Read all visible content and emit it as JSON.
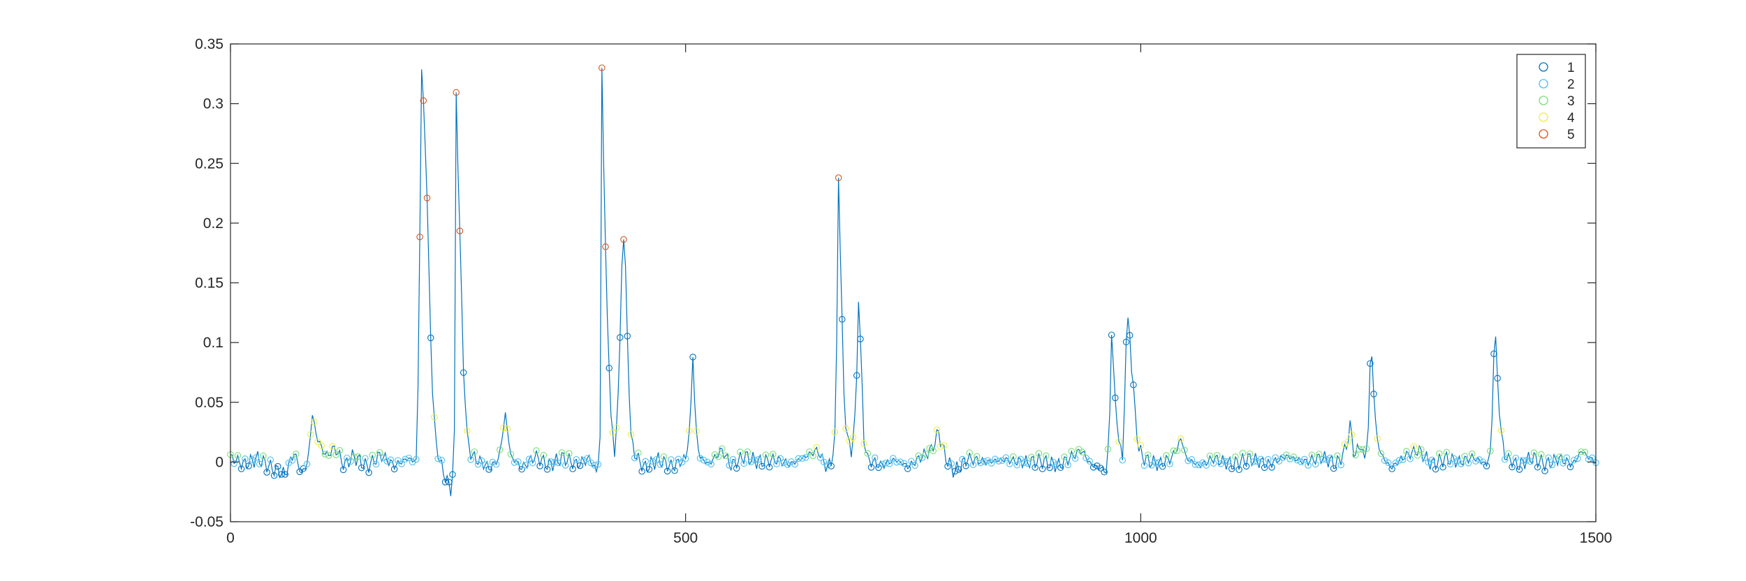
{
  "chart_data": {
    "type": "scatter",
    "xlim": [
      0,
      1500
    ],
    "ylim": [
      -0.05,
      0.35
    ],
    "x_ticks": [
      "0",
      "500",
      "1000",
      "1500"
    ],
    "y_ticks": [
      "-0.05",
      "0",
      "0.05",
      "0.1",
      "0.15",
      "0.2",
      "0.25",
      "0.3",
      "0.35"
    ],
    "grid": false,
    "legend_position": "top-right",
    "line_color": "#0072BD",
    "marker": "open-circle",
    "series": [
      {
        "name": "1",
        "color": "#0072BD"
      },
      {
        "name": "2",
        "color": "#4DBEEE"
      },
      {
        "name": "3",
        "color": "#77DD77"
      },
      {
        "name": "4",
        "color": "#EDED3C"
      },
      {
        "name": "5",
        "color": "#D95319"
      }
    ],
    "anchors": [
      [
        0,
        0.004
      ],
      [
        15,
        -0.002
      ],
      [
        30,
        0.003
      ],
      [
        45,
        -0.005
      ],
      [
        60,
        -0.01
      ],
      [
        70,
        0.008
      ],
      [
        78,
        -0.01
      ],
      [
        85,
        0.0
      ],
      [
        90,
        0.04
      ],
      [
        95,
        0.02
      ],
      [
        105,
        0.005
      ],
      [
        115,
        0.012
      ],
      [
        125,
        -0.003
      ],
      [
        135,
        0.005
      ],
      [
        150,
        -0.004
      ],
      [
        165,
        0.006
      ],
      [
        180,
        -0.003
      ],
      [
        195,
        0.003
      ],
      [
        205,
        0.0
      ],
      [
        208,
        0.19
      ],
      [
        210,
        0.326
      ],
      [
        213,
        0.29
      ],
      [
        216,
        0.22
      ],
      [
        219,
        0.13
      ],
      [
        222,
        0.06
      ],
      [
        225,
        0.02
      ],
      [
        230,
        0.0
      ],
      [
        235,
        -0.01
      ],
      [
        240,
        -0.02
      ],
      [
        243,
        -0.024
      ],
      [
        246,
        0.02
      ],
      [
        247,
        0.341
      ],
      [
        250,
        0.25
      ],
      [
        253,
        0.16
      ],
      [
        256,
        0.08
      ],
      [
        260,
        0.02
      ],
      [
        265,
        0.005
      ],
      [
        275,
        0.0
      ],
      [
        285,
        -0.005
      ],
      [
        295,
        0.003
      ],
      [
        302,
        0.04
      ],
      [
        308,
        0.005
      ],
      [
        320,
        -0.005
      ],
      [
        335,
        0.005
      ],
      [
        350,
        -0.003
      ],
      [
        365,
        0.004
      ],
      [
        380,
        -0.002
      ],
      [
        395,
        0.003
      ],
      [
        403,
        -0.01
      ],
      [
        406,
        0.02
      ],
      [
        408,
        0.329
      ],
      [
        411,
        0.21
      ],
      [
        414,
        0.12
      ],
      [
        418,
        0.04
      ],
      [
        422,
        0.005
      ],
      [
        427,
        0.07
      ],
      [
        431,
        0.2
      ],
      [
        434,
        0.16
      ],
      [
        437,
        0.08
      ],
      [
        440,
        0.02
      ],
      [
        445,
        0.005
      ],
      [
        455,
        -0.005
      ],
      [
        470,
        0.002
      ],
      [
        485,
        -0.004
      ],
      [
        500,
        0.003
      ],
      [
        505,
        0.03
      ],
      [
        508,
        0.09
      ],
      [
        511,
        0.03
      ],
      [
        515,
        0.005
      ],
      [
        525,
        -0.002
      ],
      [
        540,
        0.01
      ],
      [
        550,
        -0.003
      ],
      [
        565,
        0.005
      ],
      [
        580,
        0.0
      ],
      [
        600,
        0.002
      ],
      [
        615,
        -0.002
      ],
      [
        630,
        0.004
      ],
      [
        645,
        0.01
      ],
      [
        655,
        -0.005
      ],
      [
        660,
        0.0
      ],
      [
        665,
        0.025
      ],
      [
        668,
        0.244
      ],
      [
        671,
        0.14
      ],
      [
        674,
        0.06
      ],
      [
        677,
        0.02
      ],
      [
        682,
        0.01
      ],
      [
        687,
        0.04
      ],
      [
        690,
        0.14
      ],
      [
        693,
        0.08
      ],
      [
        696,
        0.02
      ],
      [
        700,
        0.002
      ],
      [
        715,
        -0.003
      ],
      [
        730,
        0.002
      ],
      [
        745,
        -0.004
      ],
      [
        760,
        0.005
      ],
      [
        770,
        0.01
      ],
      [
        778,
        0.025
      ],
      [
        785,
        0.005
      ],
      [
        795,
        -0.008
      ],
      [
        810,
        0.003
      ],
      [
        830,
        0.0
      ],
      [
        850,
        0.002
      ],
      [
        870,
        0.0
      ],
      [
        890,
        0.001
      ],
      [
        910,
        -0.003
      ],
      [
        925,
        0.005
      ],
      [
        935,
        0.01
      ],
      [
        945,
        -0.002
      ],
      [
        955,
        -0.005
      ],
      [
        963,
        -0.008
      ],
      [
        966,
        0.04
      ],
      [
        968,
        0.11
      ],
      [
        972,
        0.05
      ],
      [
        976,
        0.02
      ],
      [
        980,
        0.0
      ],
      [
        984,
        0.1
      ],
      [
        987,
        0.123
      ],
      [
        990,
        0.08
      ],
      [
        994,
        0.04
      ],
      [
        998,
        0.01
      ],
      [
        1005,
        0.002
      ],
      [
        1020,
        -0.002
      ],
      [
        1035,
        0.004
      ],
      [
        1045,
        0.02
      ],
      [
        1050,
        0.003
      ],
      [
        1065,
        -0.003
      ],
      [
        1080,
        0.003
      ],
      [
        1100,
        -0.002
      ],
      [
        1120,
        0.003
      ],
      [
        1140,
        -0.002
      ],
      [
        1160,
        0.005
      ],
      [
        1180,
        0.0
      ],
      [
        1200,
        0.004
      ],
      [
        1215,
        -0.002
      ],
      [
        1225,
        0.01
      ],
      [
        1230,
        0.03
      ],
      [
        1235,
        0.005
      ],
      [
        1242,
        0.015
      ],
      [
        1246,
        0.0
      ],
      [
        1250,
        0.03
      ],
      [
        1253,
        0.103
      ],
      [
        1256,
        0.06
      ],
      [
        1259,
        0.02
      ],
      [
        1265,
        0.005
      ],
      [
        1275,
        -0.005
      ],
      [
        1290,
        0.005
      ],
      [
        1305,
        0.01
      ],
      [
        1320,
        -0.002
      ],
      [
        1335,
        0.003
      ],
      [
        1350,
        0.0
      ],
      [
        1365,
        0.004
      ],
      [
        1380,
        -0.002
      ],
      [
        1385,
        0.01
      ],
      [
        1389,
        0.119
      ],
      [
        1392,
        0.07
      ],
      [
        1395,
        0.03
      ],
      [
        1400,
        0.005
      ],
      [
        1415,
        -0.003
      ],
      [
        1430,
        0.004
      ],
      [
        1445,
        -0.002
      ],
      [
        1460,
        0.003
      ],
      [
        1475,
        -0.002
      ],
      [
        1485,
        0.01
      ],
      [
        1490,
        0.005
      ],
      [
        1500,
        0.0
      ]
    ]
  }
}
